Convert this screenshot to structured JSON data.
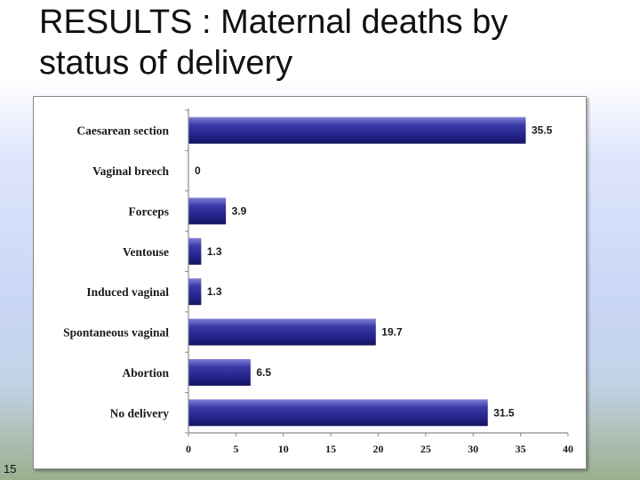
{
  "slide": {
    "title_line1": "RESULTS : Maternal deaths by",
    "title_line2": "status of delivery",
    "number": "15"
  },
  "chart_data": {
    "type": "bar",
    "orientation": "horizontal",
    "categories": [
      "Caesarean section",
      "Vaginal breech",
      "Forceps",
      "Ventouse",
      "Induced vaginal",
      "Spontaneous vaginal",
      "Abortion",
      "No delivery"
    ],
    "values": [
      35.5,
      0,
      3.9,
      1.3,
      1.3,
      19.7,
      6.5,
      31.5
    ],
    "value_labels": [
      "35.5",
      "0",
      "3.9",
      "1.3",
      "1.3",
      "19.7",
      "6.5",
      "31.5"
    ],
    "xlim": [
      0,
      40
    ],
    "xticks": [
      "0",
      "5",
      "10",
      "15",
      "20",
      "25",
      "30",
      "35",
      "40"
    ],
    "grid": false,
    "bar_color": "#2b2b8f"
  }
}
